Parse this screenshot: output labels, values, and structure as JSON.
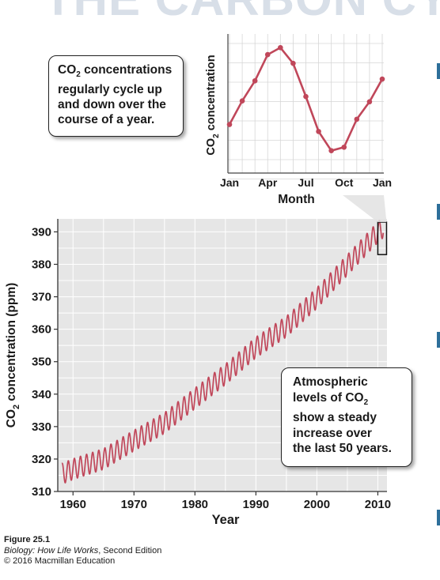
{
  "banner": "THE CARBON CYCLE",
  "chart_data": [
    {
      "type": "line",
      "title": "",
      "xlabel": "Month",
      "ylabel": "CO2 concentration",
      "x_ticks": [
        "Jan",
        "Apr",
        "Jul",
        "Oct",
        "Jan"
      ],
      "y_ticks_shown": false,
      "grid": true,
      "series": [
        {
          "x": [
            0,
            1,
            2,
            3,
            4,
            5,
            6,
            7,
            8,
            9,
            10,
            11,
            12
          ],
          "values": [
            2.6,
            3.95,
            5.1,
            6.6,
            7.0,
            6.1,
            4.2,
            2.2,
            1.1,
            1.3,
            2.9,
            3.9,
            5.2
          ]
        }
      ],
      "color": "#c0475a"
    },
    {
      "type": "line",
      "title": "",
      "xlabel": "Year",
      "ylabel": "CO2 concentration (ppm)",
      "xlim": [
        1957.5,
        2011.5
      ],
      "ylim": [
        310,
        394
      ],
      "x_ticks": [
        1960,
        1970,
        1980,
        1990,
        2000,
        2010
      ],
      "y_ticks": [
        310,
        320,
        330,
        340,
        350,
        360,
        370,
        380,
        390
      ],
      "grid": true,
      "series": [
        {
          "x": [
            1958,
            1960,
            1965,
            1970,
            1975,
            1980,
            1985,
            1990,
            1995,
            2000,
            2005,
            2010,
            2011
          ],
          "values": [
            315.3,
            316.9,
            320.0,
            325.7,
            331.1,
            338.7,
            346.1,
            354.4,
            360.8,
            369.6,
            379.8,
            389.9,
            391.6
          ]
        }
      ],
      "seasonal_amplitude_ppm": 3.2,
      "color": "#c0475a",
      "highlight_box": {
        "x": [
          2010,
          2011.3
        ],
        "y": [
          383,
          393
        ]
      }
    }
  ],
  "callouts": {
    "top": {
      "l1a": "CO",
      "sub": "2",
      "l1b": " concentrations",
      "l2": "regularly cycle up",
      "l3": "and down over the",
      "l4": "course of a year."
    },
    "bottom": {
      "l1": "Atmospheric",
      "l2a": "levels of CO",
      "sub": "2",
      "l3": "show a steady",
      "l4": "increase over",
      "l5": "the last 50 years."
    }
  },
  "caption": {
    "figure": "Figure 25.1",
    "book": "Biology: How Life Works",
    "edition": ", Second Edition",
    "copyright": "© 2016 Macmillan Education"
  }
}
